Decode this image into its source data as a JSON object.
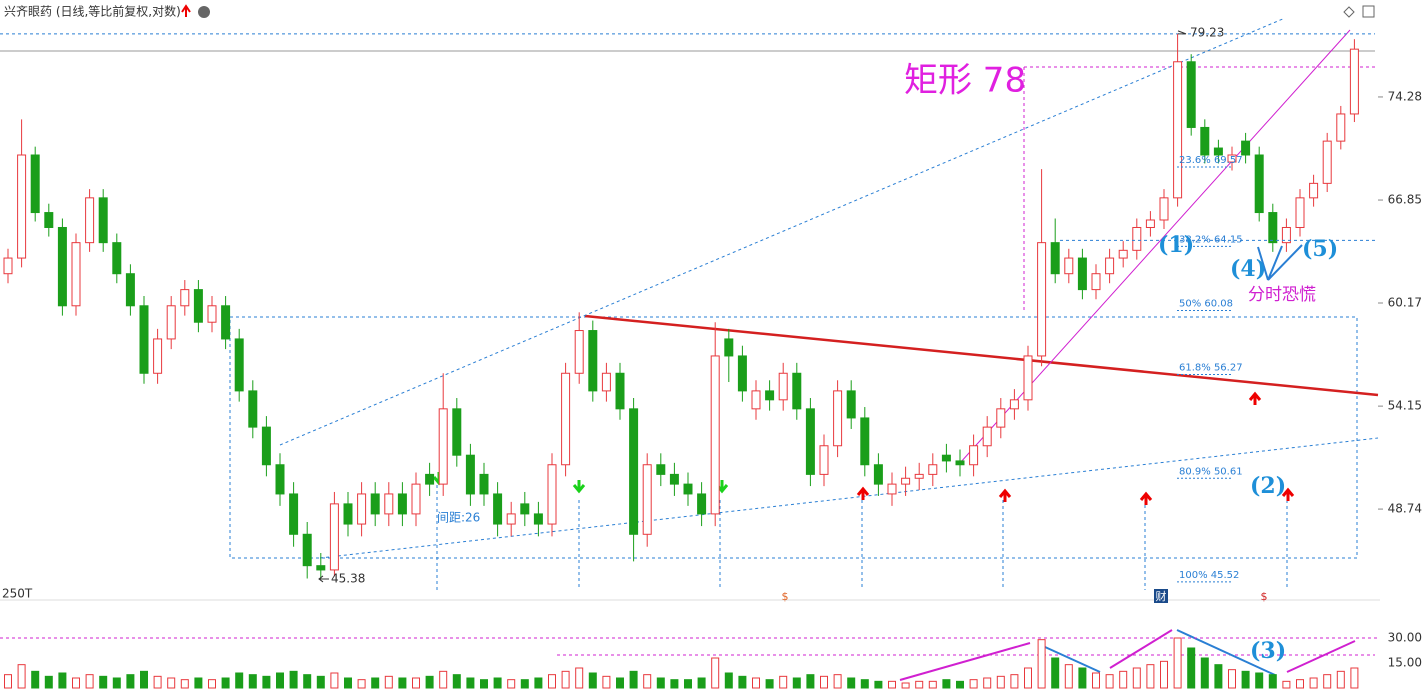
{
  "chart_data": {
    "type": "candlestick",
    "title": "兴齐眼药 (日线,等比前复权,对数)",
    "log": true,
    "ylim": [
      44.87,
      80.36
    ],
    "yticks": [
      48.74,
      54.15,
      60.17,
      66.85,
      74.28
    ],
    "up_color": "#e8383d",
    "down_color": "#1a9e1a",
    "open": [
      62,
      63,
      70,
      66,
      65,
      60,
      64,
      67,
      64,
      62,
      60,
      56,
      58,
      60,
      61,
      59,
      60,
      58,
      55,
      53,
      51,
      49.5,
      47.5,
      46,
      45.8,
      49,
      48,
      49.5,
      48.5,
      49.5,
      48.5,
      50.5,
      50,
      54,
      51.5,
      50.5,
      49.5,
      48,
      49,
      48.5,
      48,
      51,
      56,
      58.5,
      55,
      56,
      54,
      47.5,
      51,
      50.5,
      50,
      49.5,
      48.5,
      58,
      57,
      54,
      55,
      54.5,
      56,
      54,
      50.5,
      52,
      55,
      53.5,
      51,
      49.5,
      50,
      50.3,
      50.5,
      51.5,
      51.2,
      51,
      52,
      53,
      54,
      54.5,
      57,
      64,
      62,
      63,
      61,
      62,
      63,
      63.5,
      65,
      65.5,
      67,
      77,
      72,
      70.5,
      69.5,
      71,
      70,
      66,
      64,
      65,
      67,
      68,
      71,
      73
    ],
    "high": [
      63.6,
      72.6,
      70.6,
      66.6,
      65.6,
      64.6,
      67.6,
      67.6,
      64.6,
      62.6,
      60.6,
      58.6,
      60.6,
      61.6,
      61.6,
      60.6,
      60.6,
      58.6,
      55.6,
      53.6,
      51.6,
      50.1,
      48.1,
      46.6,
      49.6,
      49.6,
      50.1,
      50.1,
      50.1,
      50.1,
      50.6,
      51.1,
      56,
      54.6,
      52.1,
      51.1,
      50.1,
      49.1,
      49.6,
      49.1,
      51.6,
      56.6,
      59.6,
      59.1,
      56.6,
      56.6,
      54.6,
      51.6,
      51.6,
      51.1,
      50.6,
      50.1,
      59,
      58.6,
      57.6,
      55.6,
      55.6,
      56.6,
      56.6,
      54.6,
      52.6,
      55.6,
      55.6,
      54.1,
      51.6,
      50.6,
      50.9,
      51.1,
      51.6,
      52.1,
      51.8,
      52.6,
      53.6,
      54.6,
      55.1,
      57.6,
      69,
      65.6,
      63.6,
      63.6,
      62.6,
      63.6,
      64.1,
      65.6,
      66.1,
      67.6,
      79.23,
      77.6,
      72.6,
      71.1,
      70.6,
      71.6,
      70.6,
      66.6,
      65.6,
      67.6,
      68.6,
      71.6,
      73.6,
      78.8
    ],
    "low": [
      61.4,
      62.4,
      65.4,
      64.4,
      59.4,
      59.4,
      63.4,
      63.4,
      61.4,
      59.4,
      55.4,
      55.4,
      57.4,
      59.4,
      58.4,
      58.4,
      57.4,
      54.4,
      52.4,
      50.4,
      48.9,
      46.9,
      45.4,
      45.38,
      45.5,
      47.4,
      47.4,
      47.9,
      47.9,
      47.9,
      47.9,
      49.4,
      49.4,
      50.9,
      48.9,
      48.9,
      47.4,
      47.4,
      47.9,
      47.4,
      47.4,
      50.4,
      55.4,
      54.4,
      54.4,
      53.4,
      46.2,
      46.9,
      49.9,
      49.4,
      48.9,
      47.9,
      47.9,
      55.5,
      54.4,
      53.4,
      53.9,
      53.9,
      53.4,
      49.9,
      49.9,
      51.4,
      52.9,
      50.4,
      49.4,
      48.9,
      49.4,
      49.7,
      49.9,
      50.6,
      50.4,
      50.4,
      51.4,
      52.4,
      53.4,
      53.9,
      56.4,
      61.4,
      61.4,
      60.4,
      60.4,
      61.4,
      62.4,
      62.9,
      64.4,
      64.9,
      66.4,
      71.4,
      69.4,
      69.4,
      68.9,
      69.4,
      65.4,
      63.4,
      63.4,
      64.4,
      66.4,
      67.4,
      70.4,
      72.4
    ],
    "close": [
      63,
      70,
      66,
      65,
      60,
      64,
      67,
      64,
      62,
      60,
      56,
      58,
      60,
      61,
      59,
      60,
      58,
      55,
      53,
      51,
      49.5,
      47.5,
      46,
      45.8,
      49,
      48,
      49.5,
      48.5,
      49.5,
      48.5,
      50,
      50,
      54,
      51.5,
      49.5,
      49.5,
      48,
      48.5,
      48.5,
      48,
      51,
      56,
      58.5,
      55,
      56,
      54,
      47.5,
      51,
      50.5,
      50,
      49.5,
      48.5,
      57,
      57,
      55,
      55,
      54.5,
      56,
      54,
      50.5,
      52,
      55,
      53.5,
      51,
      50,
      50,
      50.3,
      50.5,
      51,
      51.2,
      51,
      52,
      53,
      54,
      54.5,
      57,
      64,
      62,
      63,
      61,
      62,
      63,
      63.5,
      65,
      65.5,
      67,
      77,
      72,
      70,
      70,
      70,
      70,
      66,
      64,
      65,
      67,
      68,
      71,
      73,
      78
    ],
    "max_price": 79.23,
    "min_price": 45.38,
    "rect_label": "矩形 78",
    "fib_levels": [
      {
        "label": "23.6% 69.57",
        "value": 69.57
      },
      {
        "label": "38.2% 64.15",
        "value": 64.15
      },
      {
        "label": "50% 60.08",
        "value": 60.08
      },
      {
        "label": "61.8% 56.27",
        "value": 56.27
      },
      {
        "label": "80.9% 50.61",
        "value": 50.61
      },
      {
        "label": "100% 45.52",
        "value": 45.52
      }
    ],
    "wave_labels": [
      "(1)",
      "(2)",
      "(3)",
      "(4)",
      "(5)"
    ],
    "panic_note": "分时恐慌",
    "spacing_note": "间距:26",
    "event_marks": [
      "$",
      "$",
      "财"
    ],
    "volume": {
      "scale_label": "250T",
      "ylim": [
        0,
        33.6
      ],
      "yticks": [
        {
          "value": 30,
          "label": "30.00"
        },
        {
          "value": 15,
          "label": "15.00"
        }
      ],
      "values": [
        8,
        14,
        10,
        7,
        9,
        6,
        8,
        7,
        6,
        8,
        10,
        7,
        6,
        5,
        6,
        5,
        6,
        9,
        8,
        7,
        9,
        10,
        8,
        7,
        9,
        6,
        5,
        6,
        7,
        6,
        6,
        7,
        10,
        8,
        6,
        5,
        6,
        5,
        5,
        6,
        8,
        10,
        12,
        9,
        7,
        6,
        10,
        8,
        6,
        5,
        5,
        6,
        18,
        9,
        7,
        6,
        5,
        7,
        6,
        8,
        7,
        8,
        6,
        5,
        4,
        4,
        3,
        4,
        4,
        5,
        4,
        5,
        6,
        7,
        8,
        12,
        29,
        18,
        14,
        12,
        9,
        8,
        10,
        12,
        14,
        16,
        30,
        24,
        18,
        14,
        11,
        10,
        9,
        8,
        4,
        5,
        6,
        8,
        10,
        12
      ]
    }
  }
}
